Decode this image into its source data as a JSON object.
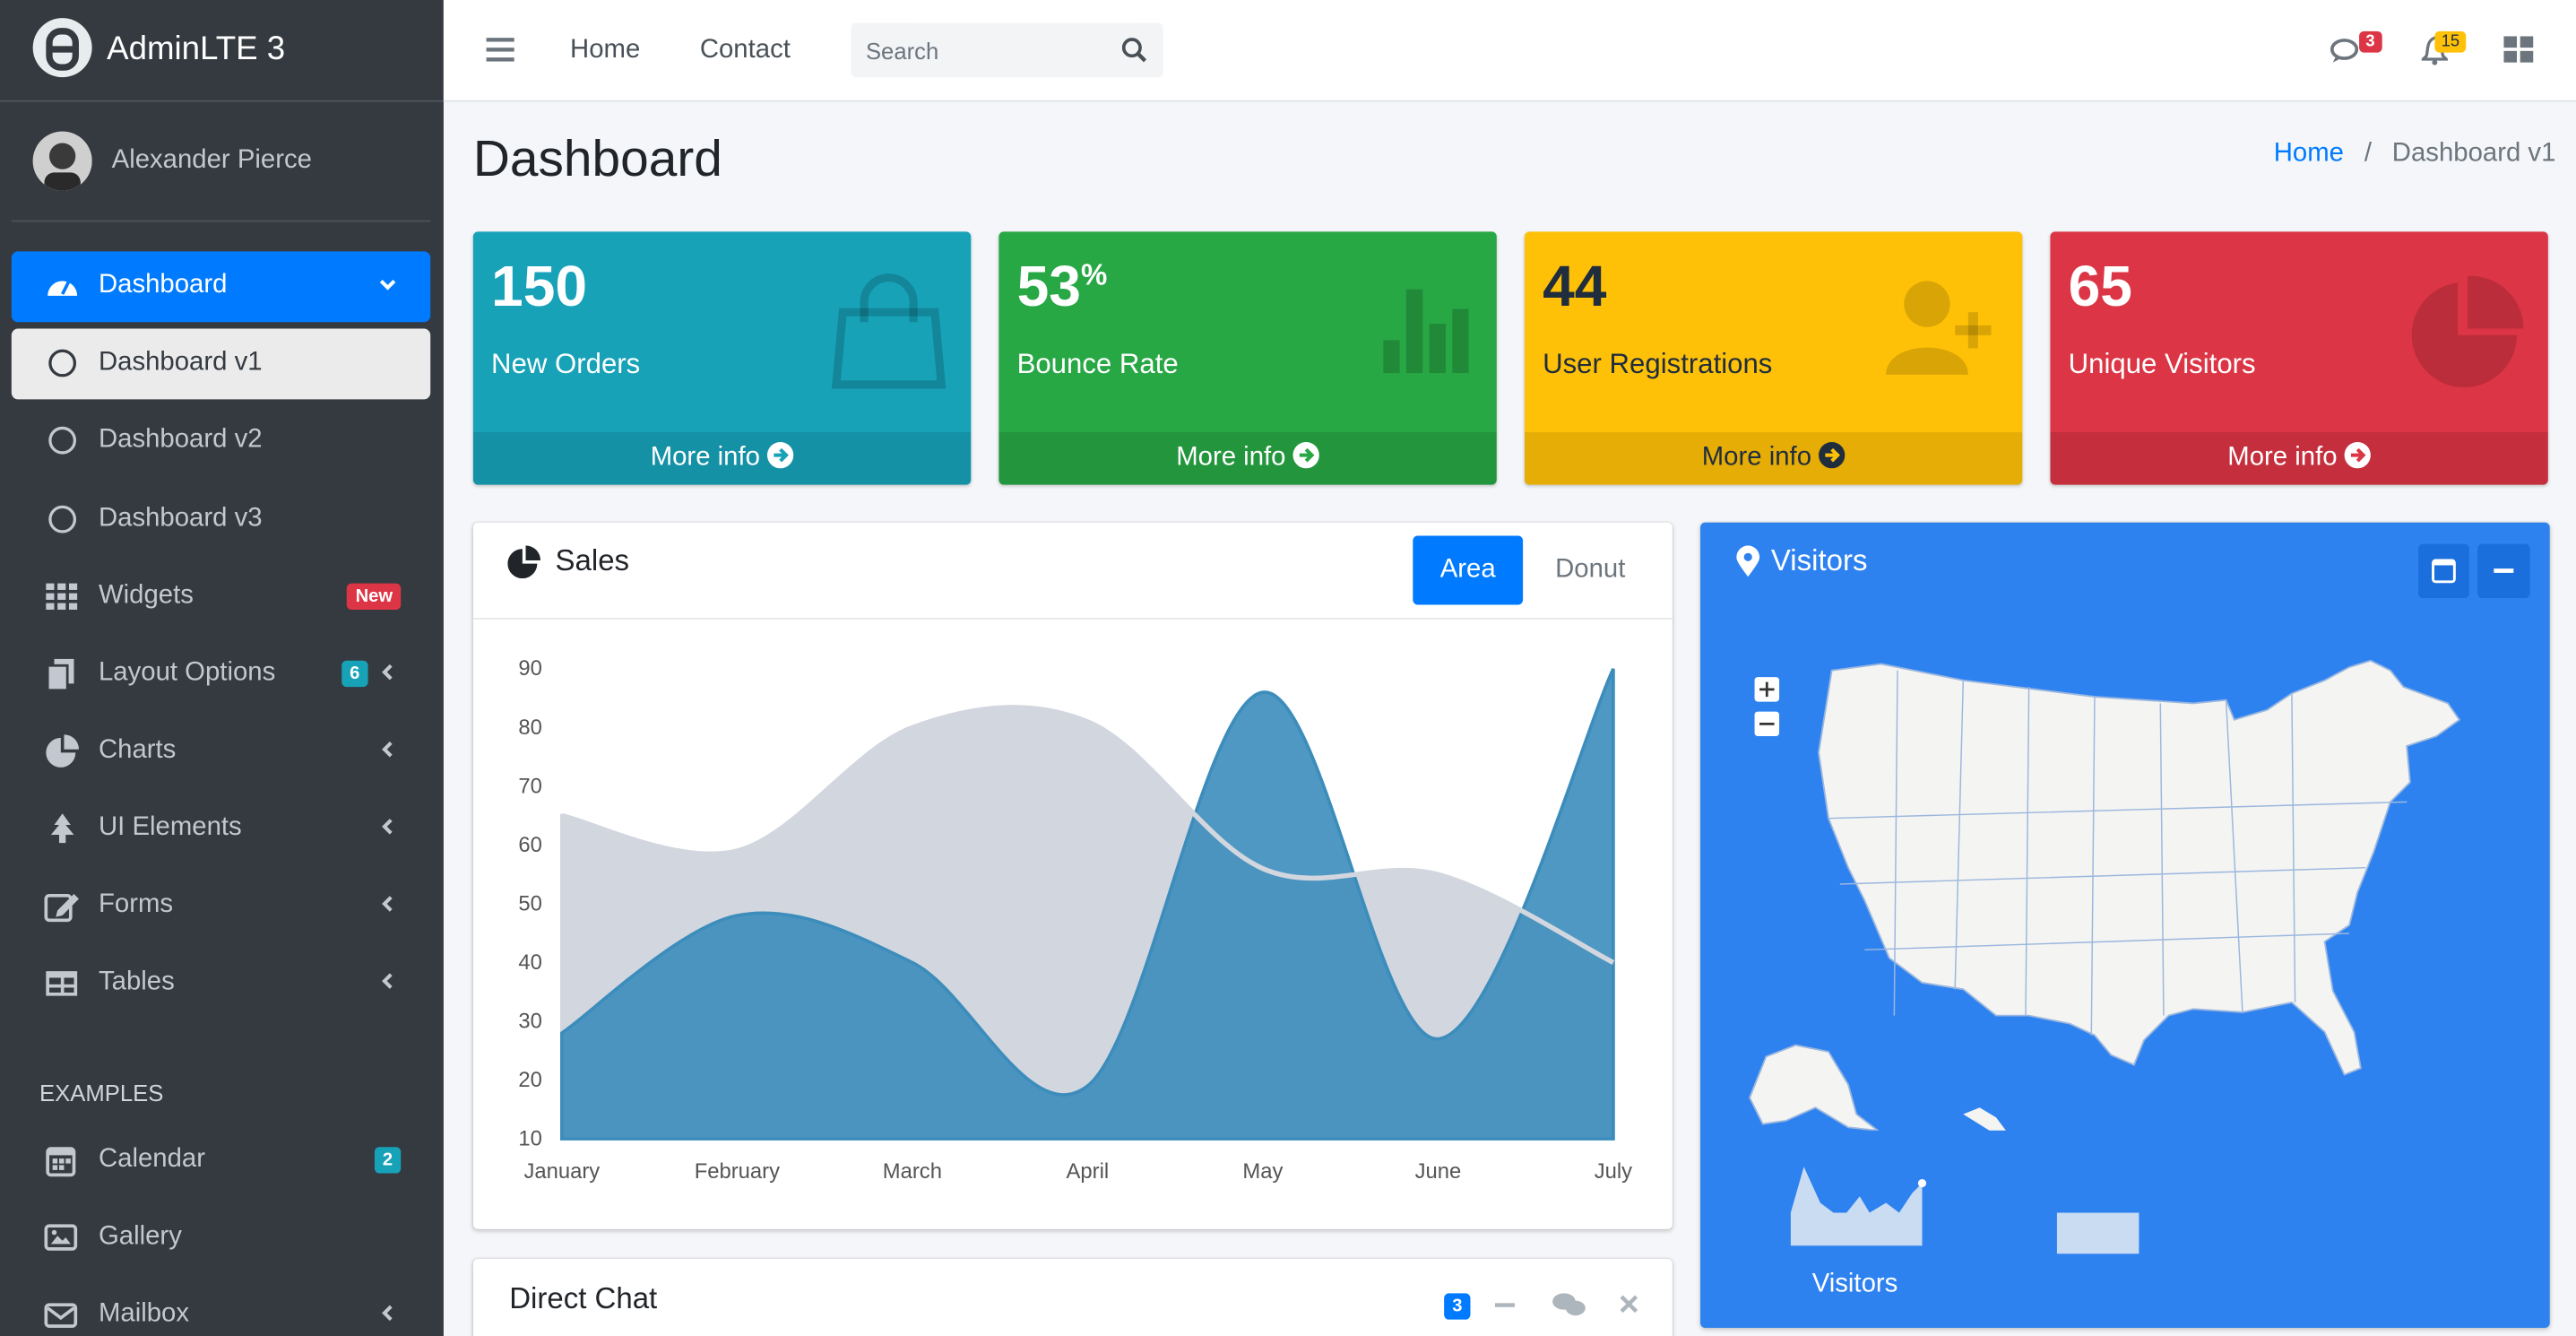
{
  "brand": "AdminLTE 3",
  "user": "Alexander Pierce",
  "navbar": {
    "links": [
      "Home",
      "Contact"
    ],
    "search_placeholder": "Search",
    "messages_badge": 3,
    "notifications_badge": 15
  },
  "sidebar": {
    "items": [
      {
        "label": "Dashboard"
      },
      {
        "label": "Dashboard v1"
      },
      {
        "label": "Dashboard v2"
      },
      {
        "label": "Dashboard v3"
      },
      {
        "label": "Widgets",
        "badge": "New"
      },
      {
        "label": "Layout Options",
        "badge": 6
      },
      {
        "label": "Charts"
      },
      {
        "label": "UI Elements"
      },
      {
        "label": "Forms"
      },
      {
        "label": "Tables"
      }
    ],
    "section": "EXAMPLES",
    "examples": [
      {
        "label": "Calendar",
        "badge": 2
      },
      {
        "label": "Gallery"
      },
      {
        "label": "Mailbox"
      }
    ]
  },
  "page_title": "Dashboard",
  "breadcrumb": [
    "Home",
    "Dashboard v1"
  ],
  "stat_boxes": [
    {
      "value": 150,
      "label": "New Orders",
      "link": "More info"
    },
    {
      "value": 53,
      "unit": "%",
      "label": "Bounce Rate",
      "link": "More info"
    },
    {
      "value": 44,
      "label": "User Registrations",
      "link": "More info"
    },
    {
      "value": 65,
      "label": "Unique Visitors",
      "link": "More info"
    }
  ],
  "sales_card": {
    "title": "Sales",
    "tabs": [
      "Area",
      "Donut"
    ],
    "chart_data": {
      "type": "area",
      "categories": [
        "January",
        "February",
        "March",
        "April",
        "May",
        "June",
        "July"
      ],
      "series": [
        {
          "color": "#d2d6de",
          "values": [
            65,
            59,
            80,
            81,
            56,
            55,
            40
          ]
        },
        {
          "color": "#3c8dbc",
          "values": [
            28,
            48,
            40,
            19,
            86,
            27,
            90
          ]
        }
      ],
      "ylim": [
        10,
        90
      ],
      "yticks": [
        10,
        20,
        30,
        40,
        50,
        60,
        70,
        80,
        90
      ]
    }
  },
  "visitors_card": {
    "title": "Visitors",
    "sparkline_label": "Visitors"
  },
  "chat_card": {
    "title": "Direct Chat",
    "badge": 3
  }
}
